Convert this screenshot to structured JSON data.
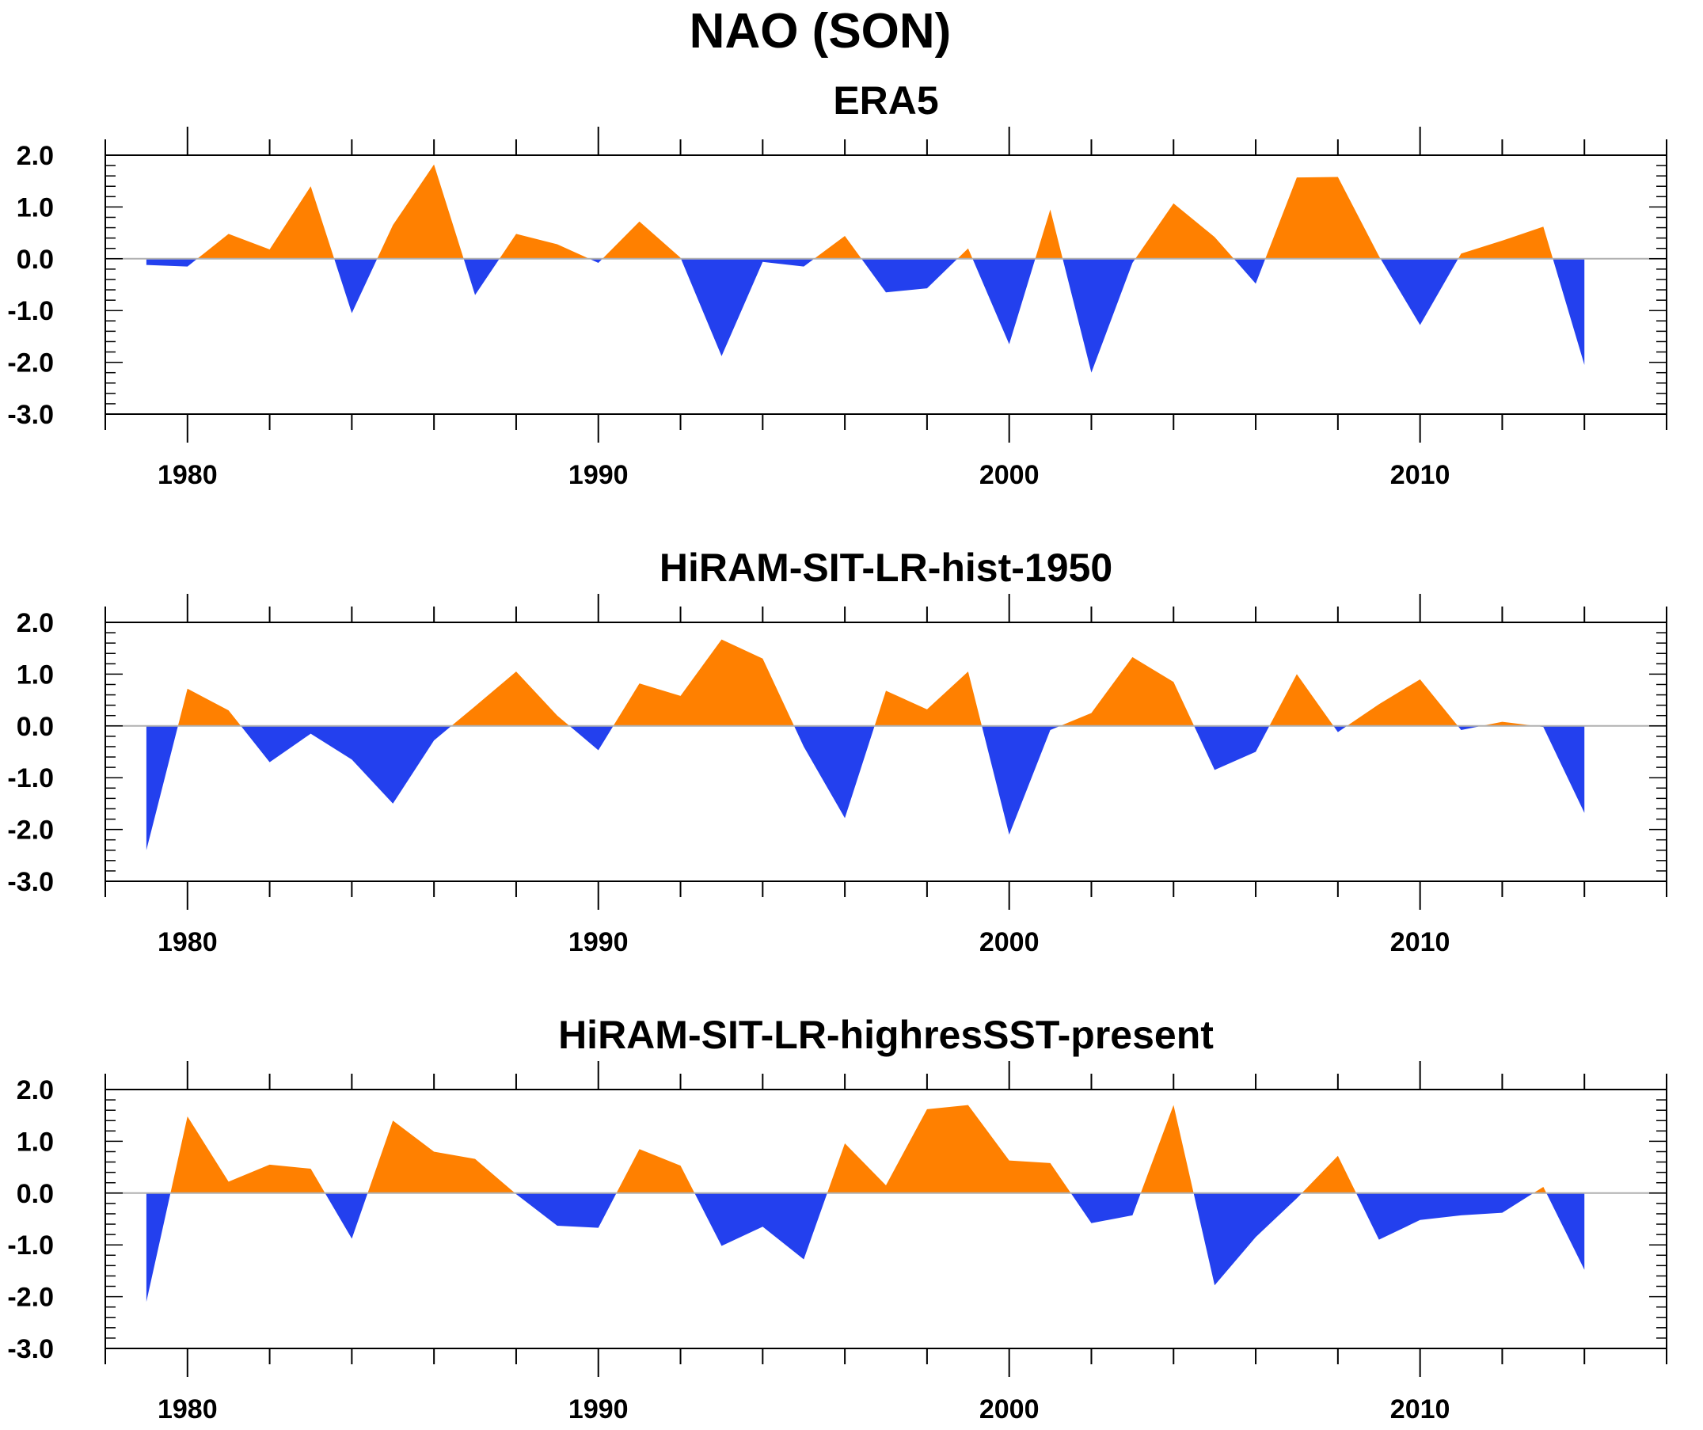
{
  "figure": {
    "title": "NAO (SON)"
  },
  "colors": {
    "positive": "#ff8000",
    "negative": "#2340ee",
    "zero_line": "#b0b0b0",
    "frame": "#000000"
  },
  "chart_data": [
    {
      "type": "area",
      "title": "ERA5",
      "xlim": [
        1978,
        2016
      ],
      "ylim": [
        -3,
        2
      ],
      "x_ticks": [
        1980,
        1990,
        2000,
        2010
      ],
      "x_tick_labels": [
        "1980",
        "1990",
        "2000",
        "2010"
      ],
      "y_ticks": [
        2,
        1,
        0,
        -1,
        -2,
        -3
      ],
      "y_tick_labels": [
        "2.0",
        "1.0",
        "0.0",
        "-1.0",
        "-2.0",
        "-3.0"
      ],
      "x": [
        1979,
        1980,
        1981,
        1982,
        1983,
        1984,
        1985,
        1986,
        1987,
        1988,
        1989,
        1990,
        1991,
        1992,
        1993,
        1994,
        1995,
        1996,
        1997,
        1998,
        1999,
        2000,
        2001,
        2002,
        2003,
        2004,
        2005,
        2006,
        2007,
        2008,
        2009,
        2010,
        2011,
        2012,
        2013,
        2014
      ],
      "values": [
        -0.12,
        -0.15,
        0.48,
        0.18,
        1.4,
        -1.05,
        0.65,
        1.82,
        -0.7,
        0.48,
        0.28,
        -0.08,
        0.72,
        0.02,
        -1.88,
        -0.06,
        -0.15,
        0.44,
        -0.65,
        -0.57,
        0.2,
        -1.65,
        0.95,
        -2.2,
        -0.08,
        1.07,
        0.42,
        -0.48,
        1.57,
        1.58,
        0.05,
        -1.28,
        0.1,
        0.35,
        0.62,
        -2.05
      ]
    },
    {
      "type": "area",
      "title": "HiRAM-SIT-LR-hist-1950",
      "xlim": [
        1978,
        2016
      ],
      "ylim": [
        -3,
        2
      ],
      "x_ticks": [
        1980,
        1990,
        2000,
        2010
      ],
      "x_tick_labels": [
        "1980",
        "1990",
        "2000",
        "2010"
      ],
      "y_ticks": [
        2,
        1,
        0,
        -1,
        -2,
        -3
      ],
      "y_tick_labels": [
        "2.0",
        "1.0",
        "0.0",
        "-1.0",
        "-2.0",
        "-3.0"
      ],
      "x": [
        1979,
        1980,
        1981,
        1982,
        1983,
        1984,
        1985,
        1986,
        1987,
        1988,
        1989,
        1990,
        1991,
        1992,
        1993,
        1994,
        1995,
        1996,
        1997,
        1998,
        1999,
        2000,
        2001,
        2002,
        2003,
        2004,
        2005,
        2006,
        2007,
        2008,
        2009,
        2010,
        2011,
        2012,
        2013,
        2014
      ],
      "values": [
        -2.4,
        0.72,
        0.3,
        -0.7,
        -0.15,
        -0.65,
        -1.5,
        -0.28,
        0.38,
        1.05,
        0.2,
        -0.47,
        0.82,
        0.58,
        1.67,
        1.3,
        -0.4,
        -1.78,
        0.68,
        0.32,
        1.05,
        -2.1,
        -0.08,
        0.25,
        1.33,
        0.85,
        -0.85,
        -0.5,
        1.0,
        -0.12,
        0.42,
        0.9,
        -0.08,
        0.08,
        -0.02,
        -1.68
      ]
    },
    {
      "type": "area",
      "title": "HiRAM-SIT-LR-highresSST-present",
      "xlim": [
        1978,
        2016
      ],
      "ylim": [
        -3,
        2
      ],
      "x_ticks": [
        1980,
        1990,
        2000,
        2010
      ],
      "x_tick_labels": [
        "1980",
        "1990",
        "2000",
        "2010"
      ],
      "y_ticks": [
        2,
        1,
        0,
        -1,
        -2,
        -3
      ],
      "y_tick_labels": [
        "2.0",
        "1.0",
        "0.0",
        "-1.0",
        "-2.0",
        "-3.0"
      ],
      "x": [
        1979,
        1980,
        1981,
        1982,
        1983,
        1984,
        1985,
        1986,
        1987,
        1988,
        1989,
        1990,
        1991,
        1992,
        1993,
        1994,
        1995,
        1996,
        1997,
        1998,
        1999,
        2000,
        2001,
        2002,
        2003,
        2004,
        2005,
        2006,
        2007,
        2008,
        2009,
        2010,
        2011,
        2012,
        2013,
        2014
      ],
      "values": [
        -2.1,
        1.48,
        0.22,
        0.55,
        0.47,
        -0.88,
        1.4,
        0.8,
        0.66,
        -0.02,
        -0.63,
        -0.67,
        0.85,
        0.53,
        -1.02,
        -0.65,
        -1.28,
        0.96,
        0.15,
        1.62,
        1.7,
        0.63,
        0.58,
        -0.58,
        -0.43,
        1.7,
        -1.78,
        -0.85,
        -0.1,
        0.72,
        -0.9,
        -0.52,
        -0.43,
        -0.38,
        0.12,
        -1.48
      ]
    }
  ]
}
